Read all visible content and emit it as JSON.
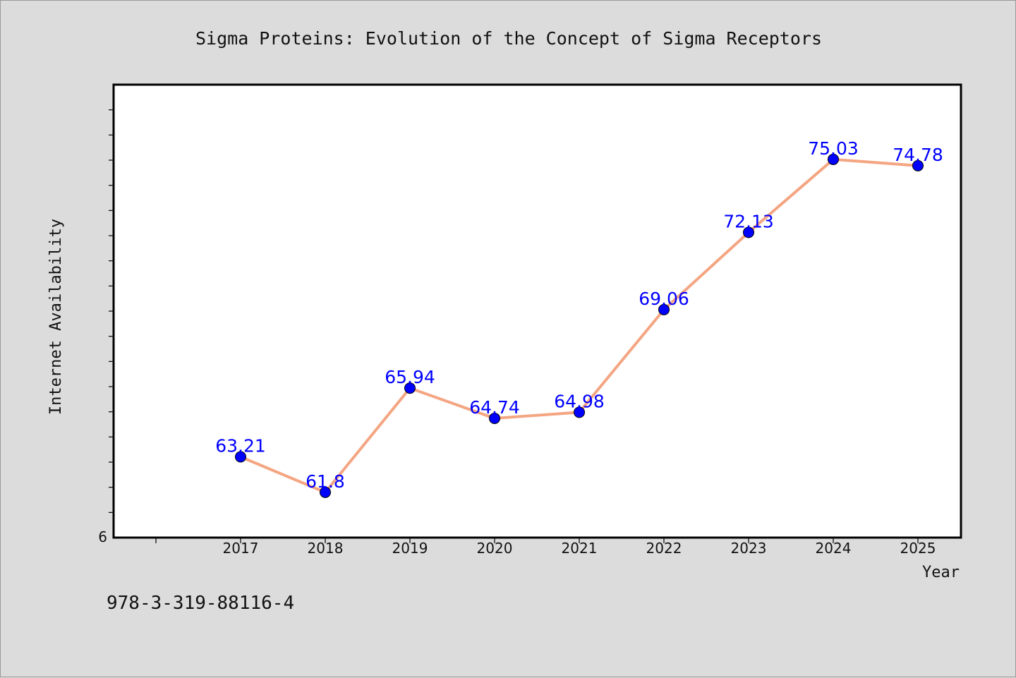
{
  "chart_data": {
    "type": "line",
    "title": "Sigma Proteins: Evolution of the Concept of Sigma Receptors",
    "xlabel": "Year",
    "ylabel": "Internet Availability",
    "categories": [
      "2017",
      "2018",
      "2019",
      "2020",
      "2021",
      "2022",
      "2023",
      "2024",
      "2025"
    ],
    "series": [
      {
        "values": [
          63.21,
          61.8,
          65.94,
          64.74,
          64.98,
          69.06,
          72.13,
          75.03,
          74.78
        ],
        "labels": [
          "63.21",
          "61.8",
          "65.94",
          "64.74",
          "64.98",
          "69.06",
          "72.13",
          "75.03",
          "74.78"
        ],
        "line_color": "#f4a582",
        "marker_color": "#0000ff",
        "label_color": "#0000ff"
      }
    ],
    "ylim": [
      60,
      78
    ],
    "y_tick_label": "6",
    "grid": false,
    "legend": "none"
  },
  "footer": {
    "isbn": "978-3-319-88116-4"
  },
  "colors": {
    "background": "#dcdcdc",
    "plot_background": "#ffffff",
    "axis": "#000000"
  }
}
